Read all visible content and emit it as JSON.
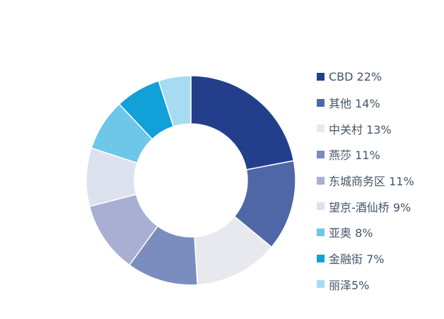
{
  "chart_data": {
    "type": "pie",
    "title": "",
    "legend_position": "right",
    "categories": [
      "CBD",
      "其他",
      "中关村",
      "燕莎",
      "东城商务区",
      "望京-酒仙桥",
      "亚奥",
      "金融街",
      "丽泽"
    ],
    "values": [
      22,
      14,
      13,
      11,
      11,
      9,
      8,
      7,
      5
    ],
    "legend_labels": [
      "CBD 22%",
      "其他 14%",
      "中关村 13%",
      "燕莎 11%",
      "东城商务区 11%",
      "望京-酒仙桥 9%",
      "亚奥 8%",
      "金融街 7%",
      "丽泽5%"
    ],
    "colors": [
      "#233f8c",
      "#4f67a7",
      "#e8e9ee",
      "#7b8dbe",
      "#a8afd2",
      "#dde1ed",
      "#6ec6e8",
      "#12a0d8",
      "#a6dcf2"
    ],
    "hole": 0.54
  }
}
